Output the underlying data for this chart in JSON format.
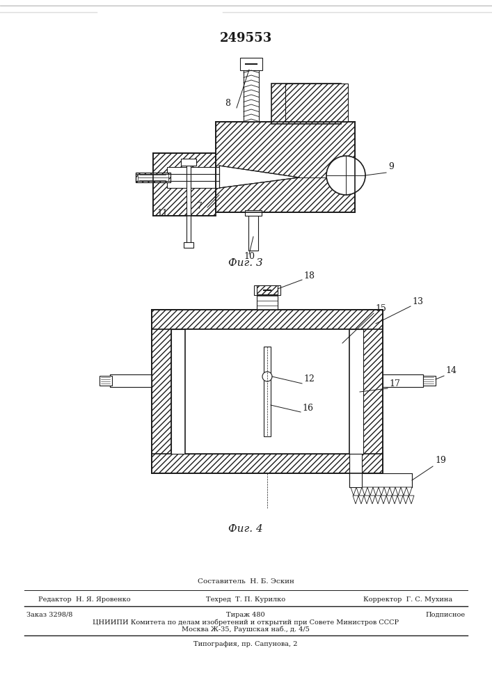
{
  "patent_number": "249553",
  "fig3_label": "Фиг. 3",
  "fig4_label": "Фиг. 4",
  "footer_composer": "Составитель  Н. Б. Эскин",
  "footer_editor": "Редактор  Н. Я. Яровенко",
  "footer_techred": "Техред  Т. П. Курилко",
  "footer_corrector": "Корректор  Г. С. Мухина",
  "footer_order": "Заказ 3298/8",
  "footer_tirazh": "Тираж 480",
  "footer_podpisnoe": "Подписное",
  "footer_cniipи": "ЦНИИПИ Комитета по делам изобретений и открытий при Совете Министров СССР",
  "footer_moscow": "Москва Ж-35, Раушская наб., д. 4/5",
  "footer_tipografia": "Типография, пр. Сапунова, 2",
  "bg_color": "#ffffff",
  "line_color": "#1a1a1a"
}
